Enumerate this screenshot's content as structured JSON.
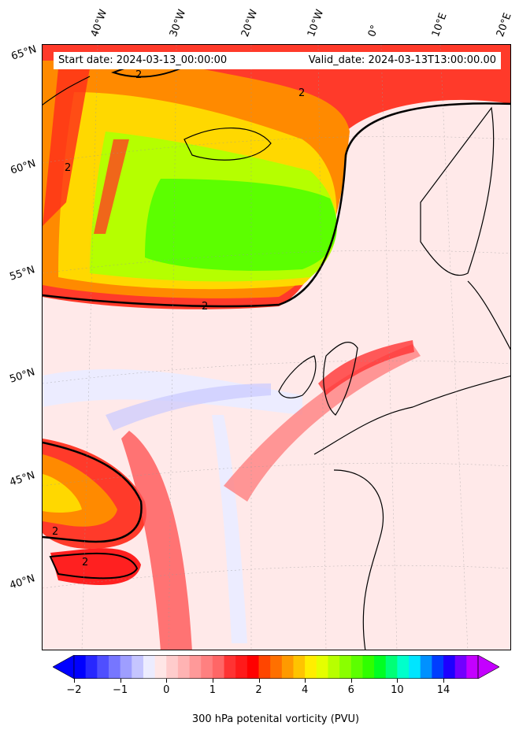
{
  "header": {
    "start_date": "Start date: 2024-03-13_00:00:00",
    "valid_date": "Valid_date: 2024-03-13T13:00:00.00"
  },
  "lon_labels": [
    "40°W",
    "30°W",
    "20°W",
    "10°W",
    "0°",
    "10°E",
    "20°E"
  ],
  "lat_labels": [
    "65°N",
    "60°N",
    "55°N",
    "50°N",
    "45°N",
    "40°N"
  ],
  "contour_label": "2",
  "colorbar": {
    "label": "300 hPa potenital vorticity (PVU)",
    "ticks": [
      "−2",
      "−1",
      "0",
      "1",
      "2",
      "4",
      "6",
      "10",
      "14"
    ],
    "colors": [
      "#0000ff",
      "#2727ff",
      "#4f4fff",
      "#7676ff",
      "#9e9eff",
      "#c5c5ff",
      "#ececff",
      "#ffe6e6",
      "#ffcccc",
      "#ffb3b3",
      "#ff9999",
      "#ff8080",
      "#ff6666",
      "#ff3333",
      "#ff1a1a",
      "#ff0000",
      "#ff4500",
      "#ff7000",
      "#ff9a00",
      "#ffc400",
      "#ffee00",
      "#e5ff00",
      "#b8ff00",
      "#8aff00",
      "#5cff00",
      "#2fff00",
      "#00ff23",
      "#00ff77",
      "#00ffcb",
      "#00e5ff",
      "#0091ff",
      "#003dff",
      "#1e00ff",
      "#7200ff",
      "#c400ff"
    ],
    "over_color": "#c400ff",
    "under_color": "#0000ff"
  }
}
